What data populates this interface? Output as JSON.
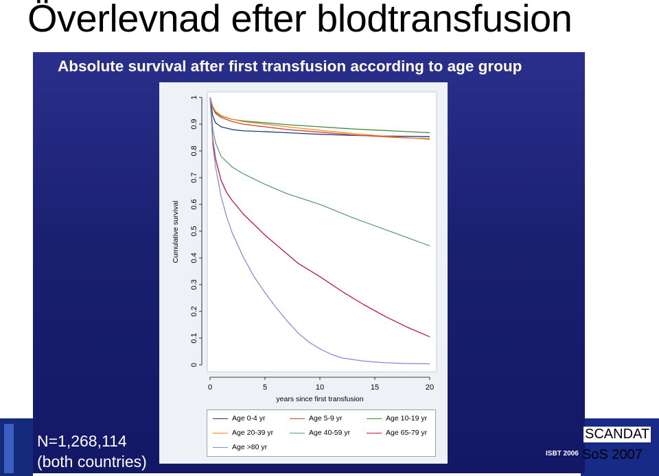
{
  "slide": {
    "title": "Överlevnad efter blodtransfusion",
    "subtitle": "Absolute survival after first transfusion according to age group",
    "n_label": "N=1,268,114",
    "n_sub": "(both countries)",
    "footer_isbt": "ISBT 2006",
    "footer_scandat": "SCANDAT",
    "footer_sos": "SoS 2007"
  },
  "colors": {
    "panel_blue": "#1a2070",
    "plot_bg": "#ffffff",
    "frame_bg": "#eef1f6"
  },
  "chart_data": {
    "type": "line",
    "title": "Absolute survival after first transfusion according to age group",
    "xlabel": "years since first transfusion",
    "ylabel": "Cumulative survival",
    "xlim": [
      0,
      20
    ],
    "ylim": [
      0,
      1
    ],
    "xticks": [
      "0",
      "5",
      "10",
      "15",
      "20"
    ],
    "yticks": [
      "0",
      "0.1",
      "0.2",
      "0.3",
      "0.4",
      "0.5",
      "0.6",
      "0.7",
      "0.8",
      "0.9",
      "1"
    ],
    "grid": false,
    "legend_position": "bottom",
    "series": [
      {
        "name": "Age 0-4 yr",
        "color": "#1f3a7a",
        "x": [
          0,
          0.25,
          0.5,
          1,
          2,
          3,
          5,
          7,
          10,
          13,
          15,
          17,
          20
        ],
        "y": [
          1.0,
          0.93,
          0.905,
          0.89,
          0.88,
          0.875,
          0.872,
          0.868,
          0.862,
          0.858,
          0.856,
          0.855,
          0.853
        ]
      },
      {
        "name": "Age 5-9 yr",
        "color": "#d04030",
        "x": [
          0,
          0.25,
          0.5,
          1,
          2,
          3,
          5,
          7,
          10,
          13,
          15,
          17,
          20
        ],
        "y": [
          1.0,
          0.96,
          0.94,
          0.925,
          0.91,
          0.9,
          0.89,
          0.88,
          0.87,
          0.86,
          0.855,
          0.85,
          0.845
        ]
      },
      {
        "name": "Age 10-19 yr",
        "color": "#3a8a3a",
        "x": [
          0,
          0.25,
          0.5,
          1,
          2,
          3,
          5,
          7,
          10,
          13,
          15,
          17,
          20
        ],
        "y": [
          1.0,
          0.965,
          0.945,
          0.93,
          0.918,
          0.912,
          0.905,
          0.898,
          0.89,
          0.882,
          0.878,
          0.874,
          0.868
        ]
      },
      {
        "name": "Age 20-39 yr",
        "color": "#f08a20",
        "x": [
          0,
          0.25,
          0.5,
          1,
          2,
          3,
          5,
          7,
          10,
          13,
          15,
          17,
          20
        ],
        "y": [
          1.0,
          0.965,
          0.948,
          0.932,
          0.918,
          0.91,
          0.9,
          0.89,
          0.877,
          0.865,
          0.858,
          0.852,
          0.843
        ]
      },
      {
        "name": "Age 40-59 yr",
        "color": "#5f9a8a",
        "x": [
          0,
          0.25,
          0.5,
          1,
          2,
          3,
          5,
          7,
          10,
          13,
          15,
          17,
          20
        ],
        "y": [
          1.0,
          0.88,
          0.83,
          0.78,
          0.74,
          0.715,
          0.675,
          0.64,
          0.6,
          0.55,
          0.52,
          0.49,
          0.445
        ]
      },
      {
        "name": "Age 65-79 yr",
        "color": "#c0182c",
        "x": [
          0,
          0.25,
          0.5,
          1,
          1.5,
          2,
          3,
          4,
          5,
          6,
          7,
          8,
          10,
          12,
          14,
          16,
          18,
          20
        ],
        "y": [
          1.0,
          0.84,
          0.77,
          0.69,
          0.645,
          0.615,
          0.565,
          0.525,
          0.485,
          0.45,
          0.415,
          0.38,
          0.33,
          0.275,
          0.225,
          0.18,
          0.14,
          0.105
        ]
      },
      {
        "name": "Age >80 yr",
        "color": "#8a8ad8",
        "x": [
          0,
          0.25,
          0.5,
          1,
          1.5,
          2,
          3,
          4,
          5,
          6,
          7,
          8,
          9,
          10,
          11,
          12,
          14,
          16,
          18,
          20
        ],
        "y": [
          1.0,
          0.82,
          0.74,
          0.63,
          0.555,
          0.495,
          0.405,
          0.33,
          0.27,
          0.215,
          0.165,
          0.12,
          0.085,
          0.06,
          0.04,
          0.026,
          0.014,
          0.008,
          0.005,
          0.004
        ]
      }
    ]
  }
}
